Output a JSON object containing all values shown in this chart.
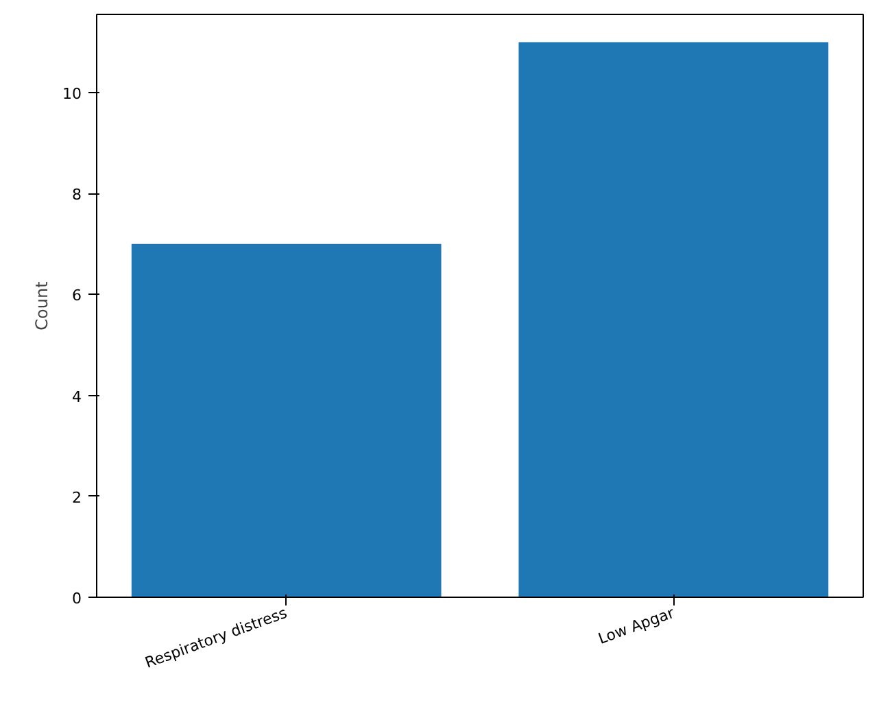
{
  "chart_data": {
    "type": "bar",
    "ylabel": "Count",
    "categories": [
      "Respiratory distress",
      "Low Apgar"
    ],
    "values": [
      7,
      11
    ],
    "color": "#1f77b4",
    "ylim": [
      0,
      11.55
    ],
    "yticks": [
      0,
      2,
      4,
      6,
      8,
      10
    ],
    "grid": false
  }
}
